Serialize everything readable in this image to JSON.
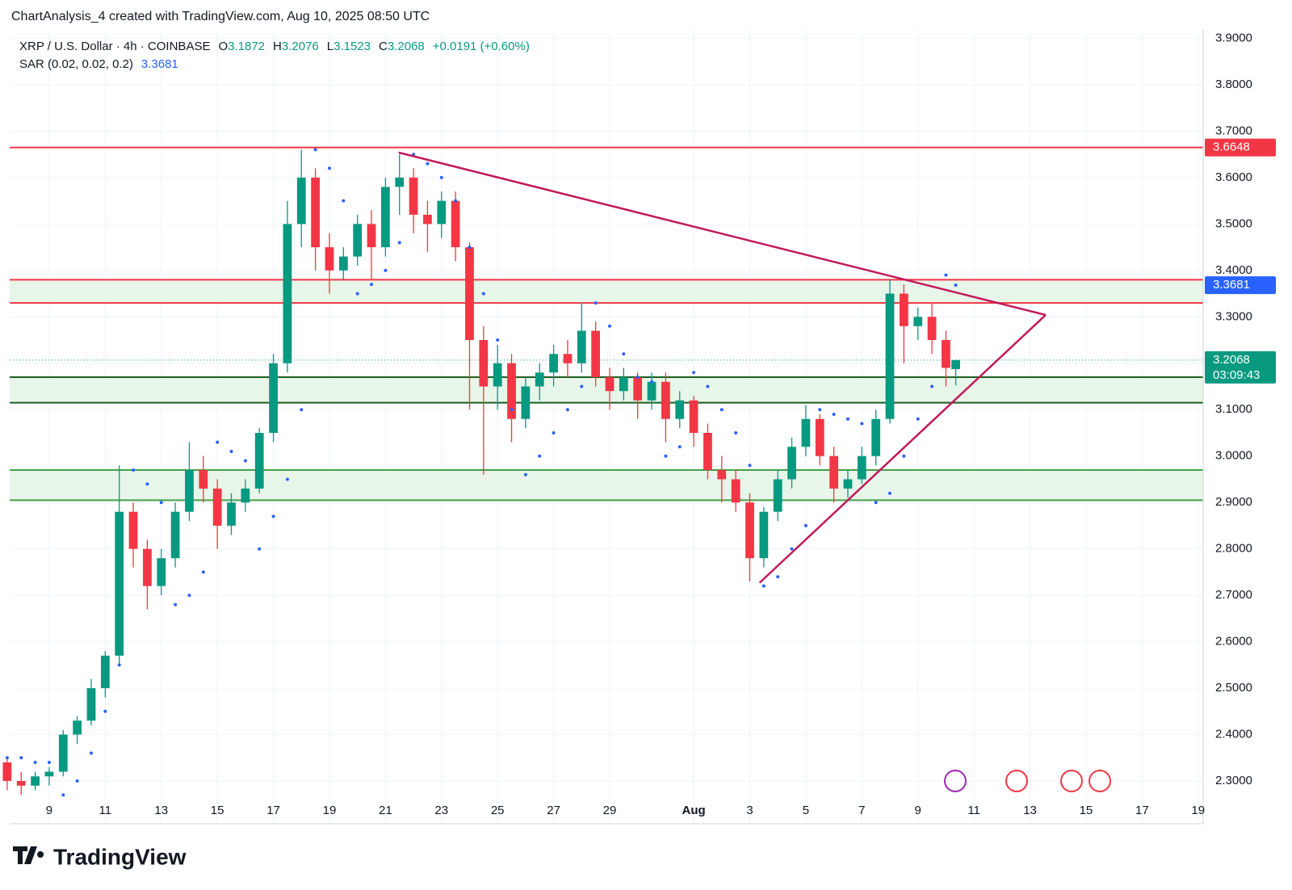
{
  "header": "ChartAnalysis_4 created with TradingView.com, Aug 10, 2025 08:50 UTC",
  "logo": "TradingView",
  "chart_data": {
    "type": "candlestick",
    "symbol": "XRP / U.S. Dollar · 4h · COINBASE",
    "legend_labels": [
      "O",
      "H",
      "L",
      "C"
    ],
    "change": "+0.0191 (+0.60%)",
    "countdown": "03:09:43",
    "up_color": "#089981",
    "down_color": "#f23645",
    "x": [
      7.5,
      8,
      8.5,
      9,
      9.5,
      10,
      10.5,
      11,
      11.5,
      12,
      12.5,
      13,
      13.5,
      14,
      14.5,
      15,
      15.5,
      16,
      16.5,
      17,
      17.5,
      18,
      18.5,
      19,
      19.5,
      20,
      20.5,
      21,
      21.5,
      22,
      22.5,
      23,
      23.5,
      24,
      24.5,
      25,
      25.5,
      26,
      26.5,
      27,
      27.5,
      28,
      28.5,
      29,
      29.5,
      30,
      30.5,
      31,
      31.5,
      32,
      32.5,
      33,
      33.5,
      34,
      34.5,
      35,
      35.5,
      36,
      36.5,
      37,
      37.5,
      38,
      38.5,
      39,
      39.5,
      40,
      40.5,
      41,
      41.35
    ],
    "open": [
      2.34,
      2.3,
      2.29,
      2.31,
      2.32,
      2.4,
      2.43,
      2.5,
      2.57,
      2.88,
      2.8,
      2.72,
      2.78,
      2.88,
      2.97,
      2.93,
      2.85,
      2.9,
      2.93,
      3.05,
      3.2,
      3.5,
      3.6,
      3.45,
      3.4,
      3.43,
      3.5,
      3.45,
      3.58,
      3.6,
      3.52,
      3.5,
      3.55,
      3.45,
      3.25,
      3.15,
      3.2,
      3.08,
      3.15,
      3.18,
      3.22,
      3.2,
      3.27,
      3.17,
      3.14,
      3.17,
      3.12,
      3.16,
      3.08,
      3.12,
      3.05,
      2.97,
      2.95,
      2.9,
      2.78,
      2.88,
      2.95,
      3.02,
      3.08,
      3.0,
      2.93,
      2.95,
      3.0,
      3.08,
      3.35,
      3.28,
      3.3,
      3.25,
      3.1872
    ],
    "high": [
      2.35,
      2.32,
      2.32,
      2.33,
      2.41,
      2.44,
      2.52,
      2.58,
      2.98,
      2.9,
      2.82,
      2.8,
      2.9,
      3.03,
      3.0,
      2.95,
      2.92,
      2.95,
      3.06,
      3.22,
      3.55,
      3.66,
      3.62,
      3.48,
      3.45,
      3.52,
      3.53,
      3.6,
      3.65,
      3.62,
      3.55,
      3.57,
      3.57,
      3.46,
      3.28,
      3.24,
      3.22,
      3.17,
      3.2,
      3.24,
      3.25,
      3.33,
      3.29,
      3.19,
      3.19,
      3.18,
      3.18,
      3.18,
      3.14,
      3.13,
      3.07,
      3.0,
      2.97,
      2.92,
      2.89,
      2.97,
      3.04,
      3.11,
      3.09,
      3.02,
      2.97,
      3.02,
      3.1,
      3.38,
      3.37,
      3.32,
      3.33,
      3.27,
      3.2076
    ],
    "low": [
      2.28,
      2.27,
      2.28,
      2.29,
      2.31,
      2.38,
      2.42,
      2.48,
      2.55,
      2.76,
      2.67,
      2.7,
      2.76,
      2.86,
      2.9,
      2.8,
      2.83,
      2.88,
      2.92,
      3.03,
      3.18,
      3.45,
      3.4,
      3.35,
      3.38,
      3.41,
      3.38,
      3.43,
      3.52,
      3.48,
      3.44,
      3.47,
      3.42,
      3.1,
      2.96,
      3.1,
      3.03,
      3.06,
      3.12,
      3.15,
      3.17,
      3.18,
      3.15,
      3.1,
      3.12,
      3.08,
      3.1,
      3.03,
      3.06,
      3.02,
      2.95,
      2.9,
      2.88,
      2.73,
      2.76,
      2.86,
      2.93,
      3.0,
      2.98,
      2.9,
      2.91,
      2.94,
      2.98,
      3.07,
      3.2,
      3.25,
      3.22,
      3.15,
      3.1523
    ],
    "close": [
      2.3,
      2.29,
      2.31,
      2.32,
      2.4,
      2.43,
      2.5,
      2.57,
      2.88,
      2.8,
      2.72,
      2.78,
      2.88,
      2.97,
      2.93,
      2.85,
      2.9,
      2.93,
      3.05,
      3.2,
      3.5,
      3.6,
      3.45,
      3.4,
      3.43,
      3.5,
      3.45,
      3.58,
      3.6,
      3.52,
      3.5,
      3.55,
      3.45,
      3.25,
      3.15,
      3.2,
      3.08,
      3.15,
      3.18,
      3.22,
      3.2,
      3.27,
      3.17,
      3.14,
      3.17,
      3.12,
      3.16,
      3.08,
      3.12,
      3.05,
      2.97,
      2.95,
      2.9,
      2.78,
      2.88,
      2.95,
      3.02,
      3.08,
      3.0,
      2.93,
      2.95,
      3.0,
      3.08,
      3.35,
      3.28,
      3.3,
      3.25,
      3.19,
      3.2068
    ],
    "indicator": {
      "name": "SAR (0.02, 0.02, 0.2)",
      "color": "#2962ff",
      "values": [
        2.35,
        2.35,
        2.34,
        2.34,
        2.27,
        2.3,
        2.36,
        2.45,
        2.55,
        2.97,
        2.94,
        2.9,
        2.68,
        2.7,
        2.75,
        3.03,
        3.01,
        2.99,
        2.8,
        2.87,
        2.95,
        3.1,
        3.66,
        3.62,
        3.55,
        3.35,
        3.37,
        3.4,
        3.46,
        3.65,
        3.63,
        3.6,
        3.55,
        3.45,
        3.35,
        3.25,
        3.1,
        2.96,
        3.0,
        3.05,
        3.1,
        3.15,
        3.33,
        3.28,
        3.22,
        3.17,
        3.16,
        3.0,
        3.02,
        3.18,
        3.15,
        3.1,
        3.05,
        2.98,
        2.72,
        2.74,
        2.8,
        2.85,
        3.1,
        3.09,
        3.08,
        3.07,
        2.9,
        2.92,
        3.0,
        3.08,
        3.15,
        3.39,
        3.3681
      ]
    },
    "horizontal_lines": [
      {
        "value": 3.6648,
        "color": "#f23645"
      },
      {
        "value": 3.38,
        "color": "#f23645"
      },
      {
        "value": 3.33,
        "color": "#f23645"
      },
      {
        "value": 3.17,
        "color": "#1b5e20"
      },
      {
        "value": 3.115,
        "color": "#1b5e20"
      },
      {
        "value": 2.97,
        "color": "#43a047"
      },
      {
        "value": 2.905,
        "color": "#43a047"
      }
    ],
    "zones": [
      [
        3.33,
        3.38
      ],
      [
        3.115,
        3.17
      ],
      [
        2.905,
        2.97
      ]
    ],
    "zone_color": "#e8f5e9",
    "trendline_color": "#c2185b",
    "trendlines": [
      {
        "x": [
          21.47,
          44.56
        ],
        "y": [
          3.654,
          3.304
        ]
      },
      {
        "x": [
          34.35,
          44.56
        ],
        "y": [
          2.727,
          3.304
        ]
      }
    ],
    "xlim": [
      7.59,
      50.18
    ],
    "ylim": [
      2.26,
      3.92
    ],
    "xticks": [
      9,
      11,
      13,
      15,
      17,
      19,
      21,
      23,
      25,
      27,
      29,
      {
        "value": 32,
        "label": "Aug"
      },
      {
        "value": 34,
        "label": "3"
      },
      {
        "value": 36,
        "label": "5"
      },
      {
        "value": 38,
        "label": "7"
      },
      {
        "value": 40,
        "label": "9"
      },
      {
        "value": 42,
        "label": "11"
      },
      {
        "value": 44,
        "label": "13"
      },
      {
        "value": 46,
        "label": "15"
      },
      {
        "value": 48,
        "label": "17"
      },
      {
        "value": 50,
        "label": "19"
      }
    ],
    "yticks": [
      {
        "value": 2.3,
        "label": "2.3000"
      },
      {
        "value": 2.4,
        "label": "2.4000"
      },
      {
        "value": 2.5,
        "label": "2.5000"
      },
      {
        "value": 2.6,
        "label": "2.6000"
      },
      {
        "value": 2.7,
        "label": "2.7000"
      },
      {
        "value": 2.8,
        "label": "2.8000"
      },
      {
        "value": 2.9,
        "label": "2.9000"
      },
      {
        "value": 3.0,
        "label": "3.0000"
      },
      {
        "value": 3.1,
        "label": "3.1000"
      },
      {
        "value": 3.2,
        "label": "3.2000"
      },
      {
        "value": 3.3,
        "label": "3.3000"
      },
      {
        "value": 3.4,
        "label": "3.4000"
      },
      {
        "value": 3.5,
        "label": "3.5000"
      },
      {
        "value": 3.6,
        "label": "3.6000"
      },
      {
        "value": 3.7,
        "label": "3.7000"
      },
      {
        "value": 3.8,
        "label": "3.8000"
      },
      {
        "value": 3.9,
        "label": "3.9000"
      }
    ]
  }
}
